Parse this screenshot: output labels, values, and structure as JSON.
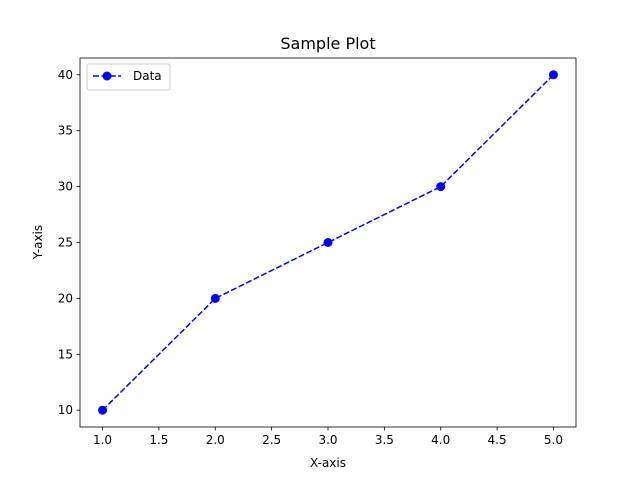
{
  "chart_data": {
    "type": "line",
    "title": "Sample Plot",
    "xlabel": "X-axis",
    "ylabel": "Y-axis",
    "x": [
      1,
      2,
      3,
      4,
      5
    ],
    "series": [
      {
        "name": "Data",
        "values": [
          10,
          20,
          25,
          30,
          40
        ],
        "color": "#0000ff",
        "line_style": "dashed",
        "marker": "circle"
      }
    ],
    "xlim": [
      0.8,
      5.2
    ],
    "ylim": [
      8.5,
      41.5
    ],
    "x_ticks": [
      1.0,
      1.5,
      2.0,
      2.5,
      3.0,
      3.5,
      4.0,
      4.5,
      5.0
    ],
    "x_tick_labels": [
      "1.0",
      "1.5",
      "2.0",
      "2.5",
      "3.0",
      "3.5",
      "4.0",
      "4.5",
      "5.0"
    ],
    "y_ticks": [
      10,
      15,
      20,
      25,
      30,
      35,
      40
    ],
    "y_tick_labels": [
      "10",
      "15",
      "20",
      "25",
      "30",
      "35",
      "40"
    ],
    "grid": false,
    "legend_position": "top-left"
  }
}
